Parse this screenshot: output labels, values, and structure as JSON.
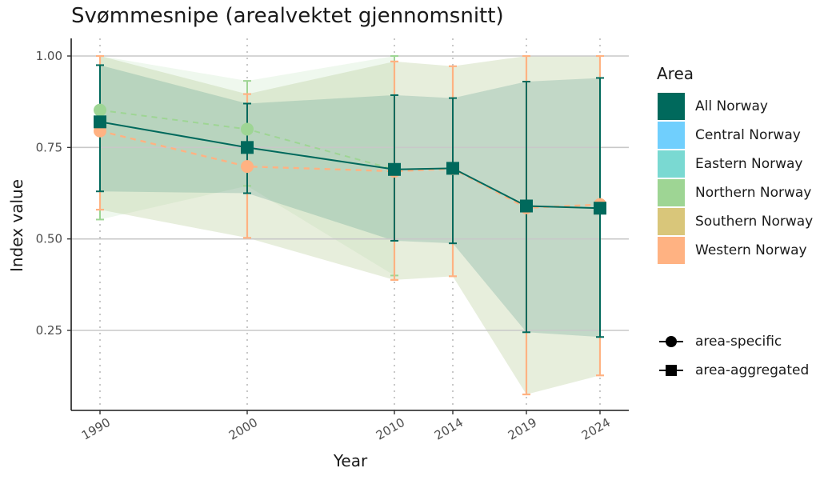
{
  "chart_data": {
    "type": "line",
    "title": "Svømmesnipe (arealvektet gjennomsnitt)",
    "xlabel": "Year",
    "ylabel": "Index value",
    "x": [
      1990,
      2000,
      2010,
      2014,
      2019,
      2024
    ],
    "x_tick_labels": [
      "1990",
      "2000",
      "2010",
      "2014",
      "2019",
      "2024"
    ],
    "xlim": [
      1989,
      2026
    ],
    "y_ticks": [
      0.25,
      0.5,
      0.75,
      1.0
    ],
    "y_tick_labels": [
      "0.25",
      "0.50",
      "0.75",
      "1.00"
    ],
    "ylim": [
      0.03,
      1.04
    ],
    "grid": "horizontal major gridlines, dotted vertical lines at each year",
    "legend_title": "Area",
    "legend_placement": "right",
    "series": [
      {
        "name": "All Norway",
        "color": "#00695c",
        "marker": "area-aggregated",
        "linestyle": "solid",
        "x": [
          1990,
          2000,
          2010,
          2014,
          2019,
          2024
        ],
        "values": [
          0.82,
          0.75,
          0.69,
          0.693,
          0.59,
          0.584
        ],
        "lower": [
          0.63,
          0.625,
          0.495,
          0.488,
          0.245,
          0.232
        ],
        "upper": [
          0.975,
          0.87,
          0.893,
          0.885,
          0.93,
          0.94
        ]
      },
      {
        "name": "Northern Norway",
        "color": "#9ed594",
        "marker": "area-specific",
        "linestyle": "dashed",
        "x": [
          1990,
          2000,
          2010
        ],
        "values": [
          0.852,
          0.8,
          0.69
        ],
        "lower": [
          0.553,
          0.645,
          0.4
        ],
        "upper": [
          1.0,
          0.932,
          1.0
        ]
      },
      {
        "name": "Western Norway",
        "color": "#ffb282",
        "marker": "area-specific",
        "linestyle": "dashed",
        "x": [
          1990,
          2000,
          2010,
          2014,
          2019,
          2024
        ],
        "values": [
          0.795,
          0.698,
          0.685,
          0.692,
          0.585,
          0.594
        ],
        "lower": [
          0.58,
          0.503,
          0.388,
          0.398,
          0.075,
          0.127
        ],
        "upper": [
          1.0,
          0.896,
          0.985,
          0.972,
          1.0,
          1.0
        ]
      }
    ],
    "legend_areas": [
      {
        "name": "All Norway",
        "color": "#00695c"
      },
      {
        "name": "Central Norway",
        "color": "#70cffd"
      },
      {
        "name": "Eastern Norway",
        "color": "#7ad9d2"
      },
      {
        "name": "Northern Norway",
        "color": "#9ed594"
      },
      {
        "name": "Southern Norway",
        "color": "#d9c67a"
      },
      {
        "name": "Western Norway",
        "color": "#ffb282"
      }
    ],
    "legend_shapes": [
      {
        "name": "area-specific",
        "shape": "circle"
      },
      {
        "name": "area-aggregated",
        "shape": "square"
      }
    ]
  }
}
